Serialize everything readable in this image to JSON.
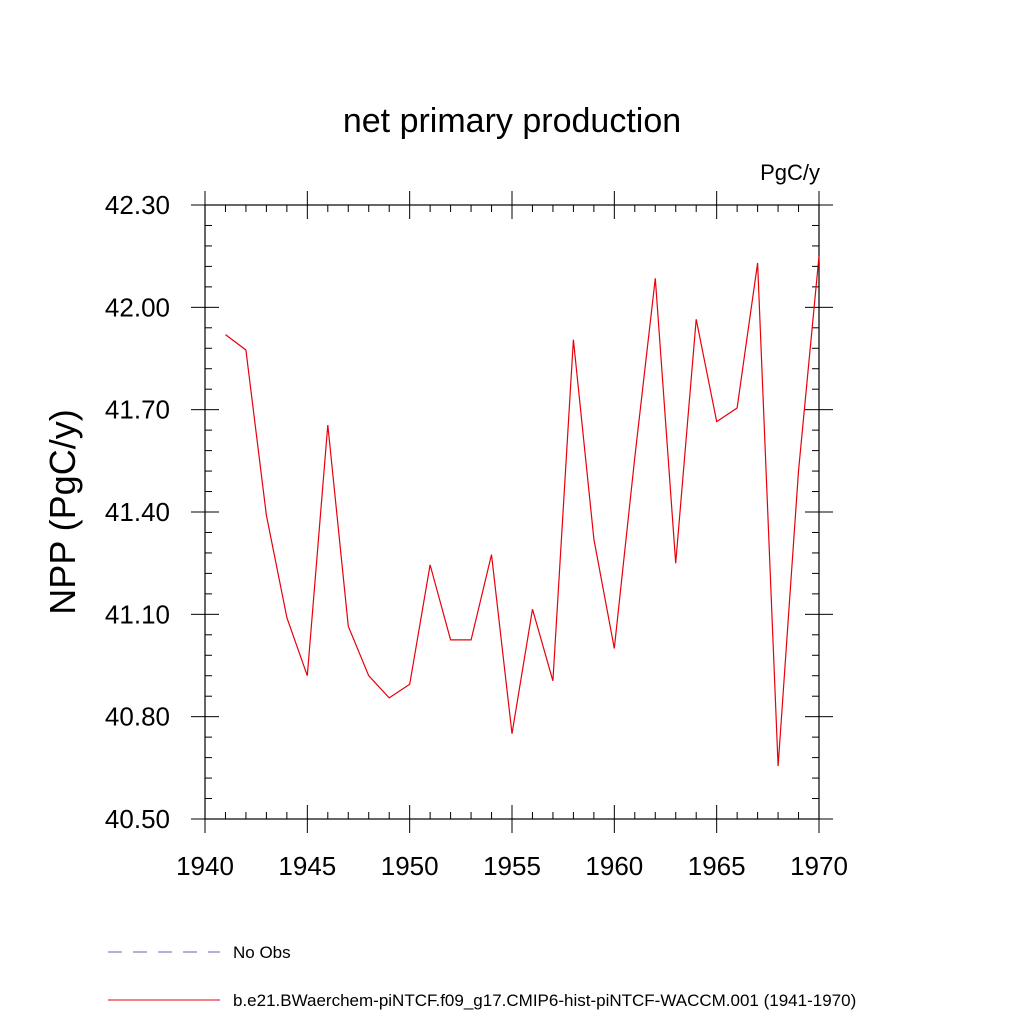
{
  "chart_data": {
    "type": "line",
    "title": "net primary production",
    "units": "PgC/y",
    "ylabel": "NPP  (PgC/y)",
    "xlabel": "",
    "xlim": [
      1940,
      1970
    ],
    "ylim": [
      40.5,
      42.3
    ],
    "xticks": [
      1940,
      1945,
      1950,
      1955,
      1960,
      1965,
      1970
    ],
    "xtick_labels": [
      "1940",
      "1945",
      "1950",
      "1955",
      "1960",
      "1965",
      "1970"
    ],
    "yticks": [
      40.5,
      40.8,
      41.1,
      41.4,
      41.7,
      42.0,
      42.3
    ],
    "ytick_labels": [
      "40.50",
      "40.80",
      "41.10",
      "41.40",
      "41.70",
      "42.00",
      "42.30"
    ],
    "grid": false,
    "legend_position": "bottom",
    "series": [
      {
        "name": "b.e21.BWaerchem-piNTCF.f09_g17.CMIP6-hist-piNTCF-WACCM.001 (1941-1970)",
        "color": "#e8000b",
        "dash": "solid",
        "x": [
          1941,
          1942,
          1943,
          1944,
          1945,
          1946,
          1947,
          1948,
          1949,
          1950,
          1951,
          1952,
          1953,
          1954,
          1955,
          1956,
          1957,
          1958,
          1959,
          1960,
          1961,
          1962,
          1963,
          1964,
          1965,
          1966,
          1967,
          1968,
          1969,
          1970
        ],
        "y": [
          41.92,
          41.875,
          41.39,
          41.09,
          40.92,
          41.655,
          41.065,
          40.92,
          40.855,
          40.895,
          41.245,
          41.025,
          41.025,
          41.275,
          40.75,
          41.115,
          40.905,
          41.905,
          41.32,
          41.0,
          41.56,
          42.085,
          41.25,
          41.965,
          41.665,
          41.705,
          42.13,
          40.655,
          41.52,
          42.15
        ]
      },
      {
        "name": "No Obs",
        "color": "#6b5fb8",
        "dash": "dashed",
        "x": [],
        "y": []
      }
    ]
  }
}
